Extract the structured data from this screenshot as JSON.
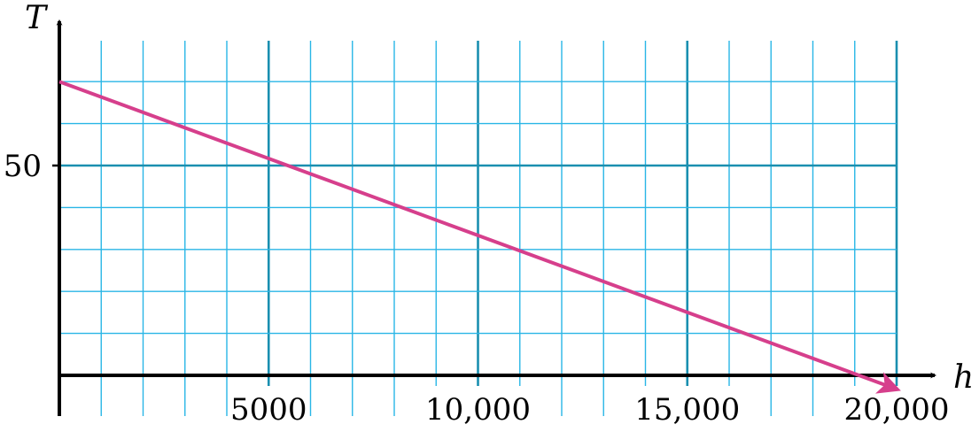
{
  "chart_data": {
    "type": "line",
    "title": "",
    "xlabel": "h",
    "ylabel": "T",
    "xlim": [
      0,
      20000
    ],
    "ylim": [
      -5,
      80
    ],
    "grid": true,
    "x_minor_step": 1000,
    "x_major_step": 5000,
    "y_minor_step": 10,
    "y_major_step": 50,
    "x_ticks": [
      {
        "value": 5000,
        "label": "5000"
      },
      {
        "value": 10000,
        "label": "10,000"
      },
      {
        "value": 15000,
        "label": "15,000"
      },
      {
        "value": 20000,
        "label": "20,000"
      }
    ],
    "y_ticks": [
      {
        "value": 50,
        "label": "50"
      }
    ],
    "series": [
      {
        "points": [
          {
            "x": 0,
            "y": 70
          },
          {
            "x": 20000,
            "y": -3.3
          }
        ],
        "end_arrow": true
      }
    ],
    "colors": {
      "grid_minor": "#29b6e6",
      "grid_major": "#1a8fb0",
      "axis": "#000000",
      "series": "#d63f8c"
    }
  }
}
